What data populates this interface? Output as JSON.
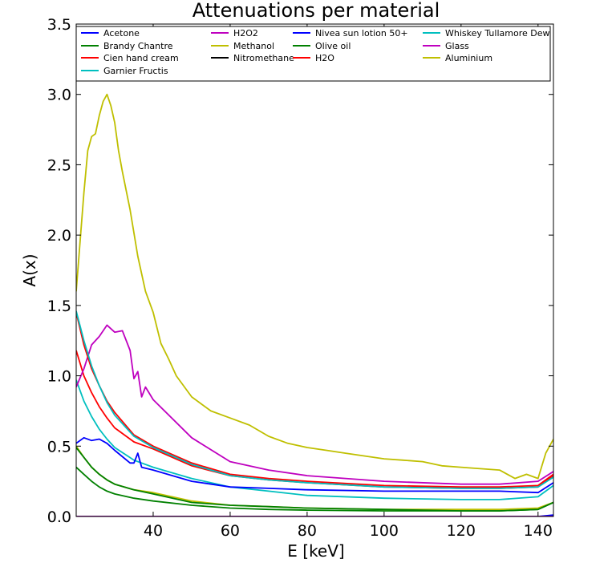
{
  "chart_data": {
    "type": "line",
    "title": "Attenuations per material",
    "xlabel": "E [keV]",
    "ylabel": "A(x)",
    "xlim": [
      20,
      144
    ],
    "ylim": [
      0,
      3.5
    ],
    "xticks": [
      40,
      60,
      80,
      100,
      120,
      140
    ],
    "yticks": [
      0.0,
      0.5,
      1.0,
      1.5,
      2.0,
      2.5,
      3.0,
      3.5
    ],
    "xtick_labels": [
      "40",
      "60",
      "80",
      "100",
      "120",
      "140"
    ],
    "ytick_labels": [
      "0.0",
      "0.5",
      "1.0",
      "1.5",
      "2.0",
      "2.5",
      "3.0",
      "3.5"
    ],
    "grid": false,
    "legend_position": "top",
    "series": [
      {
        "name": "Acetone",
        "color": "#0000ff",
        "x": [
          20,
          22,
          24,
          26,
          28,
          30,
          35,
          40,
          50,
          60,
          70,
          80,
          100,
          120,
          130,
          140,
          144
        ],
        "y": [
          0.0,
          0.0,
          0.0,
          0.0,
          0.0,
          0.0,
          0.0,
          0.0,
          0.0,
          0.0,
          0.0,
          0.0,
          0.0,
          0.0,
          0.0,
          0.0,
          0.01
        ]
      },
      {
        "name": "Brandy Chantre",
        "color": "#008000",
        "x": [
          20,
          22,
          24,
          26,
          28,
          30,
          35,
          40,
          50,
          60,
          70,
          80,
          100,
          120,
          130,
          140,
          144
        ],
        "y": [
          0.35,
          0.3,
          0.25,
          0.21,
          0.18,
          0.16,
          0.13,
          0.11,
          0.08,
          0.06,
          0.05,
          0.045,
          0.04,
          0.04,
          0.04,
          0.05,
          0.1
        ]
      },
      {
        "name": "Cien hand cream",
        "color": "#ff0000",
        "x": [
          20,
          22,
          24,
          26,
          28,
          30,
          35,
          40,
          50,
          60,
          70,
          80,
          100,
          120,
          130,
          140,
          144
        ],
        "y": [
          1.18,
          1.0,
          0.88,
          0.78,
          0.7,
          0.63,
          0.53,
          0.48,
          0.36,
          0.29,
          0.26,
          0.24,
          0.21,
          0.2,
          0.2,
          0.21,
          0.29
        ]
      },
      {
        "name": "Garnier Fructis",
        "color": "#00bfbf",
        "x": [
          20,
          22,
          24,
          26,
          28,
          30,
          35,
          40,
          50,
          60,
          70,
          80,
          100,
          120,
          130,
          140,
          144
        ],
        "y": [
          0.97,
          0.82,
          0.71,
          0.62,
          0.55,
          0.49,
          0.4,
          0.35,
          0.27,
          0.21,
          0.18,
          0.15,
          0.13,
          0.12,
          0.12,
          0.14,
          0.22
        ]
      },
      {
        "name": "H2O2",
        "color": "#bf00bf",
        "x": [
          20,
          22,
          24,
          26,
          28,
          30,
          32,
          34,
          35,
          36,
          37,
          38,
          40,
          50,
          60,
          70,
          80,
          100,
          120,
          130,
          140,
          144
        ],
        "y": [
          0.92,
          1.05,
          1.22,
          1.28,
          1.36,
          1.31,
          1.32,
          1.18,
          0.98,
          1.03,
          0.85,
          0.92,
          0.83,
          0.56,
          0.39,
          0.33,
          0.29,
          0.25,
          0.23,
          0.23,
          0.25,
          0.32
        ]
      },
      {
        "name": "Methanol",
        "color": "#bfbf00",
        "x": [
          20,
          22,
          24,
          26,
          28,
          30,
          35,
          40,
          50,
          60,
          70,
          80,
          100,
          120,
          130,
          140,
          144
        ],
        "y": [
          0.5,
          0.42,
          0.35,
          0.3,
          0.26,
          0.23,
          0.19,
          0.17,
          0.11,
          0.08,
          0.07,
          0.06,
          0.05,
          0.05,
          0.05,
          0.06,
          0.1
        ]
      },
      {
        "name": "Nitromethane",
        "color": "#000000",
        "x": [
          20,
          22,
          24,
          26,
          28,
          30,
          35,
          40,
          50,
          60,
          70,
          80,
          100,
          120,
          130,
          140,
          144
        ],
        "y": [
          0.0,
          0.0,
          0.0,
          0.0,
          0.0,
          0.0,
          0.0,
          0.0,
          0.0,
          0.0,
          0.0,
          0.0,
          0.0,
          0.0,
          0.0,
          0.0,
          0.0
        ]
      },
      {
        "name": "Nivea sun lotion 50+",
        "color": "#0000ff",
        "x": [
          20,
          22,
          24,
          26,
          28,
          30,
          34,
          35,
          36,
          37,
          40,
          50,
          60,
          70,
          80,
          100,
          120,
          130,
          140,
          144
        ],
        "y": [
          0.52,
          0.56,
          0.54,
          0.55,
          0.52,
          0.47,
          0.38,
          0.38,
          0.45,
          0.35,
          0.33,
          0.25,
          0.21,
          0.2,
          0.19,
          0.18,
          0.18,
          0.18,
          0.17,
          0.24
        ]
      },
      {
        "name": "Olive oil",
        "color": "#008000",
        "x": [
          20,
          22,
          24,
          26,
          28,
          30,
          35,
          40,
          50,
          60,
          70,
          80,
          100,
          120,
          130,
          140,
          144
        ],
        "y": [
          0.49,
          0.42,
          0.35,
          0.3,
          0.26,
          0.23,
          0.19,
          0.16,
          0.1,
          0.08,
          0.07,
          0.06,
          0.05,
          0.04,
          0.04,
          0.05,
          0.1
        ]
      },
      {
        "name": "H2O",
        "color": "#ff0000",
        "x": [
          20,
          22,
          24,
          26,
          28,
          30,
          35,
          40,
          50,
          60,
          70,
          80,
          100,
          120,
          130,
          140,
          144
        ],
        "y": [
          1.45,
          1.22,
          1.05,
          0.93,
          0.82,
          0.74,
          0.58,
          0.5,
          0.38,
          0.3,
          0.27,
          0.25,
          0.22,
          0.21,
          0.21,
          0.22,
          0.3
        ]
      },
      {
        "name": "Whiskey Tullamore Dew",
        "color": "#00bfbf",
        "x": [
          20,
          22,
          24,
          26,
          28,
          30,
          35,
          40,
          50,
          60,
          70,
          80,
          100,
          120,
          130,
          140,
          144
        ],
        "y": [
          1.46,
          1.25,
          1.07,
          0.93,
          0.81,
          0.72,
          0.57,
          0.49,
          0.37,
          0.29,
          0.26,
          0.24,
          0.21,
          0.2,
          0.2,
          0.21,
          0.28
        ]
      },
      {
        "name": "Glass",
        "color": "#bf00bf",
        "x": [
          20,
          22,
          24,
          26,
          28,
          30,
          35,
          40,
          50,
          60,
          70,
          80,
          100,
          120,
          130,
          140,
          144
        ],
        "y": [
          0.0,
          0.0,
          0.0,
          0.0,
          0.0,
          0.0,
          0.0,
          0.0,
          0.0,
          0.0,
          0.0,
          0.0,
          0.0,
          0.0,
          0.0,
          0.0,
          0.0
        ]
      },
      {
        "name": "Aluminium",
        "color": "#bfbf00",
        "x": [
          20,
          21,
          22,
          23,
          24,
          25,
          26,
          27,
          28,
          29,
          30,
          31,
          32,
          34,
          36,
          38,
          40,
          42,
          44,
          46,
          50,
          55,
          60,
          65,
          70,
          75,
          80,
          85,
          90,
          95,
          100,
          105,
          110,
          115,
          120,
          125,
          130,
          134,
          137,
          140,
          142,
          144
        ],
        "y": [
          1.6,
          1.95,
          2.3,
          2.6,
          2.7,
          2.72,
          2.85,
          2.95,
          3.0,
          2.92,
          2.8,
          2.6,
          2.45,
          2.18,
          1.85,
          1.6,
          1.45,
          1.23,
          1.12,
          1.0,
          0.85,
          0.75,
          0.7,
          0.65,
          0.57,
          0.52,
          0.49,
          0.47,
          0.45,
          0.43,
          0.41,
          0.4,
          0.39,
          0.36,
          0.35,
          0.34,
          0.33,
          0.27,
          0.3,
          0.27,
          0.45,
          0.55
        ]
      }
    ]
  }
}
